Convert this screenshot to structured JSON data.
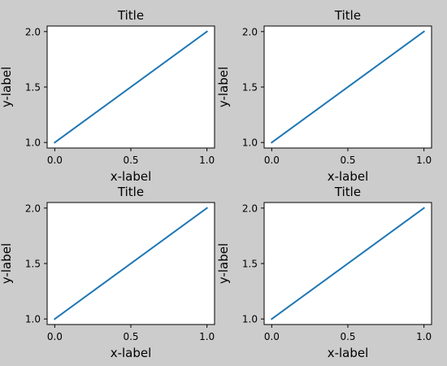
{
  "figure": {
    "background": "#cccccc"
  },
  "chart_data": [
    {
      "type": "line",
      "title": "Title",
      "xlabel": "x-label",
      "ylabel": "y-label",
      "xlim": [
        -0.05,
        1.05
      ],
      "ylim": [
        0.95,
        2.05
      ],
      "xticks": [
        0.0,
        0.5,
        1.0
      ],
      "xtick_labels": [
        "0.0",
        "0.5",
        "1.0"
      ],
      "yticks": [
        1.0,
        1.5,
        2.0
      ],
      "ytick_labels": [
        "1.0",
        "1.5",
        "2.0"
      ],
      "grid": false,
      "series": [
        {
          "x": [
            0,
            1
          ],
          "values": [
            1,
            2
          ],
          "color": "#1f77b4"
        }
      ]
    },
    {
      "type": "line",
      "title": "Title",
      "xlabel": "x-label",
      "ylabel": "y-label",
      "xlim": [
        -0.05,
        1.05
      ],
      "ylim": [
        0.95,
        2.05
      ],
      "xticks": [
        0.0,
        0.5,
        1.0
      ],
      "xtick_labels": [
        "0.0",
        "0.5",
        "1.0"
      ],
      "yticks": [
        1.0,
        1.5,
        2.0
      ],
      "ytick_labels": [
        "1.0",
        "1.5",
        "2.0"
      ],
      "grid": false,
      "series": [
        {
          "x": [
            0,
            1
          ],
          "values": [
            1,
            2
          ],
          "color": "#1f77b4"
        }
      ]
    },
    {
      "type": "line",
      "title": "Title",
      "xlabel": "x-label",
      "ylabel": "y-label",
      "xlim": [
        -0.05,
        1.05
      ],
      "ylim": [
        0.95,
        2.05
      ],
      "xticks": [
        0.0,
        0.5,
        1.0
      ],
      "xtick_labels": [
        "0.0",
        "0.5",
        "1.0"
      ],
      "yticks": [
        1.0,
        1.5,
        2.0
      ],
      "ytick_labels": [
        "1.0",
        "1.5",
        "2.0"
      ],
      "grid": false,
      "series": [
        {
          "x": [
            0,
            1
          ],
          "values": [
            1,
            2
          ],
          "color": "#1f77b4"
        }
      ]
    },
    {
      "type": "line",
      "title": "Title",
      "xlabel": "x-label",
      "ylabel": "y-label",
      "xlim": [
        -0.05,
        1.05
      ],
      "ylim": [
        0.95,
        2.05
      ],
      "xticks": [
        0.0,
        0.5,
        1.0
      ],
      "xtick_labels": [
        "0.0",
        "0.5",
        "1.0"
      ],
      "yticks": [
        1.0,
        1.5,
        2.0
      ],
      "ytick_labels": [
        "1.0",
        "1.5",
        "2.0"
      ],
      "grid": false,
      "series": [
        {
          "x": [
            0,
            1
          ],
          "values": [
            1,
            2
          ],
          "color": "#1f77b4"
        }
      ]
    }
  ]
}
